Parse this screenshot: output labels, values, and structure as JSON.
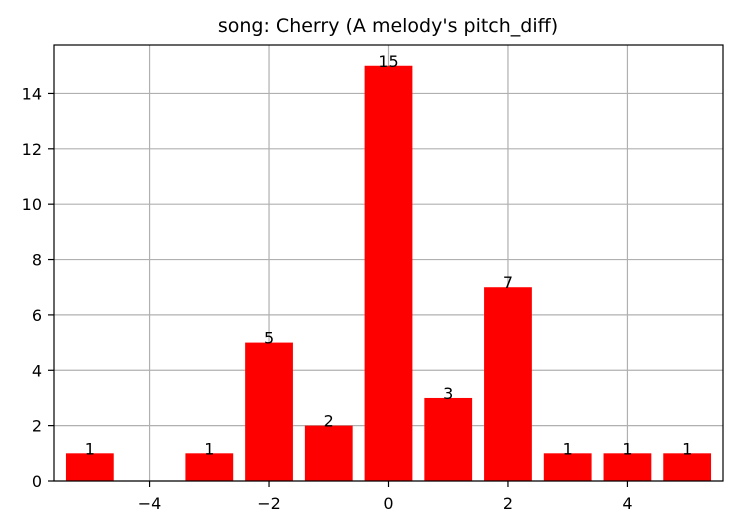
{
  "chart_data": {
    "type": "bar",
    "title": "song: Cherry (A melody's pitch_diff)",
    "xlabel": "",
    "ylabel": "",
    "x": [
      -5,
      -3,
      -2,
      -1,
      0,
      1,
      2,
      3,
      4,
      5
    ],
    "values": [
      1,
      1,
      5,
      2,
      15,
      3,
      7,
      1,
      1,
      1
    ],
    "data_labels": [
      "1",
      "1",
      "5",
      "2",
      "15",
      "3",
      "7",
      "1",
      "1",
      "1"
    ],
    "xlim": [
      -5.6,
      5.6
    ],
    "ylim": [
      0,
      15.75
    ],
    "xticks": [
      -4,
      -2,
      0,
      2,
      4
    ],
    "xtick_labels": [
      "−4",
      "−2",
      "0",
      "2",
      "4"
    ],
    "yticks": [
      0,
      2,
      4,
      6,
      8,
      10,
      12,
      14
    ],
    "ytick_labels": [
      "0",
      "2",
      "4",
      "6",
      "8",
      "10",
      "12",
      "14"
    ],
    "bar_width": 0.8,
    "grid": true,
    "bar_color": "#ff0000",
    "grid_color": "#b0b0b0"
  }
}
